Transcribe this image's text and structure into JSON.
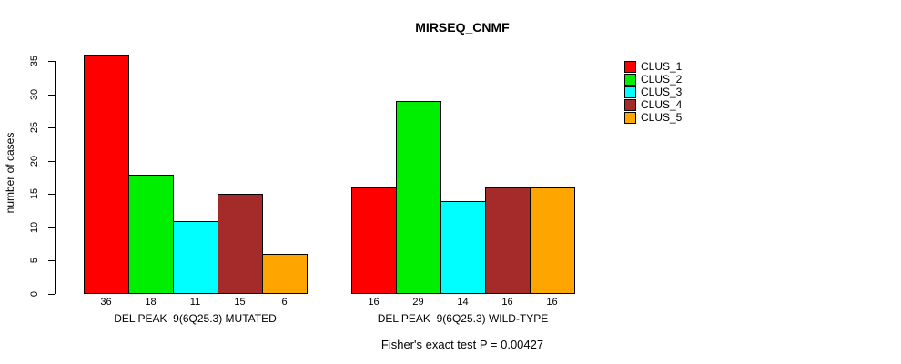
{
  "chart_data": {
    "type": "bar",
    "title": "MIRSEQ_CNMF",
    "ylabel": "number of cases",
    "annotation": "Fisher's exact test P = 0.00427",
    "ylim": [
      0,
      36
    ],
    "yticks": [
      0,
      5,
      10,
      15,
      20,
      25,
      30,
      35
    ],
    "grid": false,
    "legend_position": "right",
    "series": [
      {
        "name": "CLUS_1",
        "color": "#FF0000"
      },
      {
        "name": "CLUS_2",
        "color": "#00EE00"
      },
      {
        "name": "CLUS_3",
        "color": "#00FFFF"
      },
      {
        "name": "CLUS_4",
        "color": "#A52A2A"
      },
      {
        "name": "CLUS_5",
        "color": "#FFA500"
      }
    ],
    "groups": [
      {
        "label": "DEL PEAK  9(6Q25.3) MUTATED",
        "values": [
          36,
          18,
          11,
          15,
          6
        ]
      },
      {
        "label": "DEL PEAK  9(6Q25.3) WILD-TYPE",
        "values": [
          16,
          29,
          14,
          16,
          16
        ]
      }
    ]
  }
}
